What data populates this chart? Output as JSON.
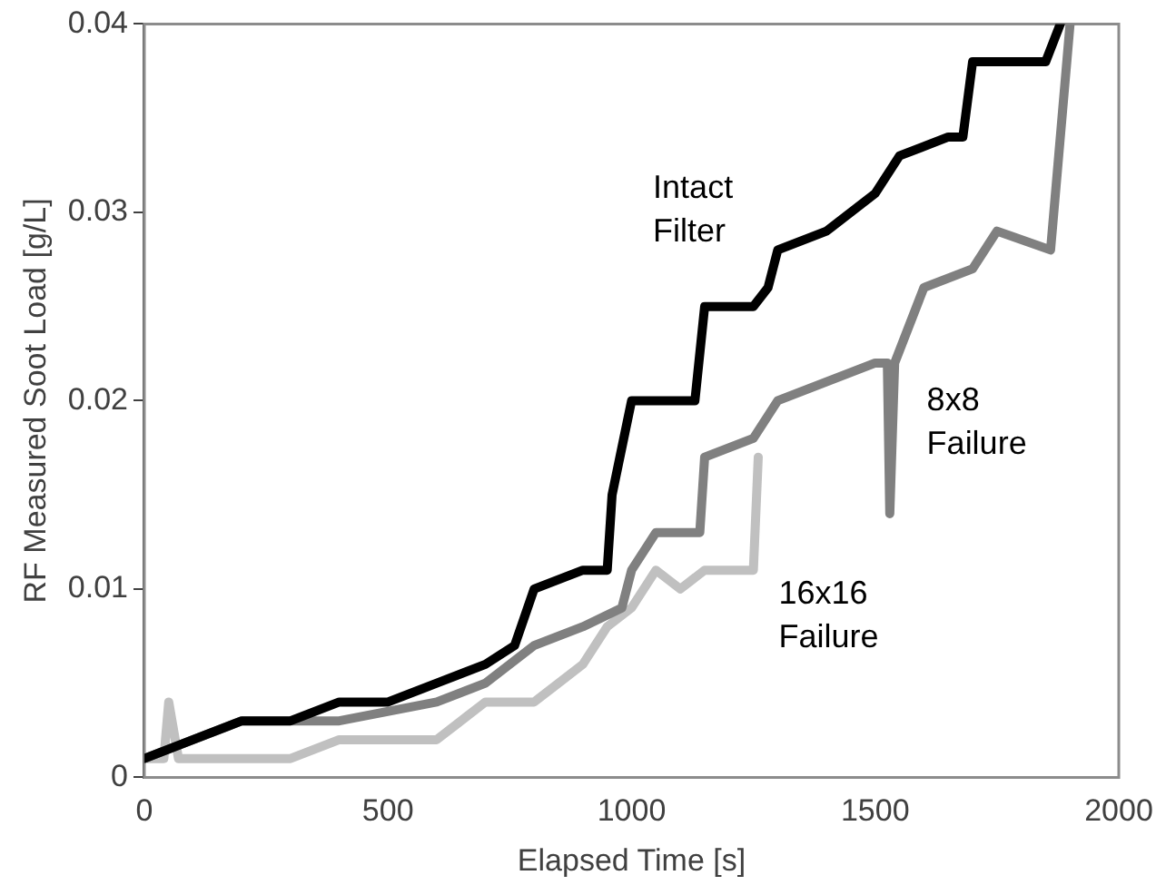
{
  "chart_data": {
    "type": "line",
    "xlabel": "Elapsed Time [s]",
    "ylabel": "RF Measured Soot Load [g/L]",
    "xlim": [
      0,
      2000
    ],
    "xticks": [
      0,
      500,
      1000,
      1500,
      2000
    ],
    "ylim": [
      0,
      0.04
    ],
    "yticks": [
      0,
      0.01,
      0.02,
      0.03,
      0.04
    ],
    "grid": false,
    "legend": false,
    "marker": "none",
    "line_style": "solid",
    "series": [
      {
        "name": "Intact Filter",
        "color": "#000000",
        "x": [
          0,
          100,
          200,
          300,
          400,
          500,
          600,
          700,
          760,
          800,
          900,
          950,
          960,
          1000,
          1100,
          1130,
          1150,
          1250,
          1280,
          1300,
          1400,
          1500,
          1550,
          1650,
          1680,
          1700,
          1850,
          1880
        ],
        "values": [
          0.001,
          0.002,
          0.003,
          0.003,
          0.004,
          0.004,
          0.005,
          0.006,
          0.007,
          0.01,
          0.011,
          0.011,
          0.015,
          0.02,
          0.02,
          0.02,
          0.025,
          0.025,
          0.026,
          0.028,
          0.029,
          0.031,
          0.033,
          0.034,
          0.034,
          0.038,
          0.038,
          0.04
        ]
      },
      {
        "name": "8x8 Failure",
        "color": "#808080",
        "x": [
          0,
          100,
          200,
          400,
          600,
          700,
          800,
          900,
          980,
          1000,
          1050,
          1100,
          1140,
          1150,
          1250,
          1300,
          1500,
          1525,
          1530,
          1540,
          1600,
          1700,
          1750,
          1860,
          1900
        ],
        "values": [
          0.001,
          0.002,
          0.003,
          0.003,
          0.004,
          0.005,
          0.007,
          0.008,
          0.009,
          0.011,
          0.013,
          0.013,
          0.013,
          0.017,
          0.018,
          0.02,
          0.022,
          0.022,
          0.014,
          0.022,
          0.026,
          0.027,
          0.029,
          0.028,
          0.04
        ]
      },
      {
        "name": "16x16 Failure",
        "color": "#c0c0c0",
        "x": [
          0,
          40,
          50,
          70,
          200,
          300,
          400,
          500,
          600,
          700,
          800,
          900,
          950,
          1000,
          1050,
          1100,
          1150,
          1250,
          1260
        ],
        "values": [
          0.001,
          0.001,
          0.004,
          0.001,
          0.001,
          0.001,
          0.002,
          0.002,
          0.002,
          0.004,
          0.004,
          0.006,
          0.008,
          0.009,
          0.011,
          0.01,
          0.011,
          0.011,
          0.017
        ]
      }
    ]
  }
}
